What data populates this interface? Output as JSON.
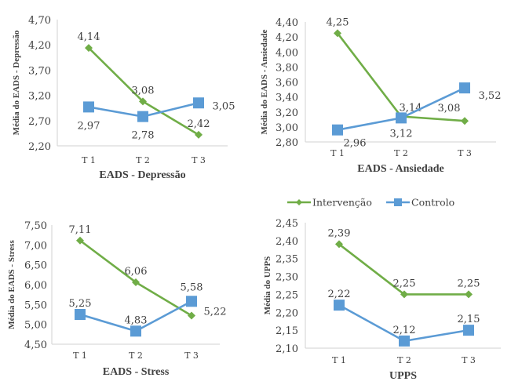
{
  "legend": {
    "items": [
      {
        "name": "Intervenção",
        "color": "#70AD47",
        "marker": "diamond"
      },
      {
        "name": "Controlo",
        "color": "#5B9BD5",
        "marker": "square"
      }
    ],
    "placement": "top-right"
  },
  "chart_data": [
    {
      "type": "line",
      "title": "",
      "xlabel": "EADS - Depressão",
      "ylabel": "Média do EADS - Depressão",
      "categories": [
        "T 1",
        "T 2",
        "T 3"
      ],
      "ylim": [
        2.2,
        4.7
      ],
      "yticks": [
        "4,70",
        "4,20",
        "3,70",
        "3,20",
        "2,70",
        "2,20"
      ],
      "ytick_values": [
        4.7,
        4.2,
        3.7,
        3.2,
        2.7,
        2.2
      ],
      "grid": false,
      "series": [
        {
          "name": "Intervenção",
          "values": [
            4.14,
            3.08,
            2.42
          ],
          "labels": [
            "4,14",
            "3,08",
            "2,42"
          ]
        },
        {
          "name": "Controlo",
          "values": [
            2.97,
            2.78,
            3.05
          ],
          "labels": [
            "2,97",
            "2,78",
            "3,05"
          ]
        }
      ]
    },
    {
      "type": "line",
      "title": "",
      "xlabel": "EADS - Ansiedade",
      "ylabel": "Média do EADS - Ansiedade",
      "categories": [
        "T 1",
        "T 2",
        "T 3"
      ],
      "ylim": [
        2.8,
        4.4
      ],
      "yticks": [
        "4,40",
        "4,20",
        "4,00",
        "3,80",
        "3,60",
        "3,40",
        "3,20",
        "3,00",
        "2,80"
      ],
      "ytick_values": [
        4.4,
        4.2,
        4.0,
        3.8,
        3.6,
        3.4,
        3.2,
        3.0,
        2.8
      ],
      "grid": false,
      "series": [
        {
          "name": "Intervenção",
          "values": [
            4.25,
            3.14,
            3.08
          ],
          "labels": [
            "4,25",
            "3,14",
            "3,08"
          ]
        },
        {
          "name": "Controlo",
          "values": [
            2.96,
            3.12,
            3.52
          ],
          "labels": [
            "2,96",
            "3,12",
            "3,52"
          ]
        }
      ]
    },
    {
      "type": "line",
      "title": "",
      "xlabel": "EADS - Stress",
      "ylabel": "Média do EADS - Stress",
      "categories": [
        "T 1",
        "T 2",
        "T 3"
      ],
      "ylim": [
        4.5,
        7.5
      ],
      "yticks": [
        "7,50",
        "7,00",
        "6,50",
        "6,00",
        "5,50",
        "5,00",
        "4,50"
      ],
      "ytick_values": [
        7.5,
        7.0,
        6.5,
        6.0,
        5.5,
        5.0,
        4.5
      ],
      "grid": false,
      "series": [
        {
          "name": "Intervenção",
          "values": [
            7.11,
            6.06,
            5.22
          ],
          "labels": [
            "7,11",
            "6,06",
            "5,22"
          ]
        },
        {
          "name": "Controlo",
          "values": [
            5.25,
            4.83,
            5.58
          ],
          "labels": [
            "5,25",
            "4,83",
            "5,58"
          ]
        }
      ]
    },
    {
      "type": "line",
      "title": "",
      "xlabel": "UPPS",
      "ylabel": "Média do UPPS",
      "categories": [
        "T 1",
        "T 2",
        "T 3"
      ],
      "ylim": [
        2.1,
        2.45
      ],
      "yticks": [
        "2,45",
        "2,40",
        "2,35",
        "2,30",
        "2,25",
        "2,20",
        "2,15",
        "2,10"
      ],
      "ytick_values": [
        2.45,
        2.4,
        2.35,
        2.3,
        2.25,
        2.2,
        2.15,
        2.1
      ],
      "grid": false,
      "series": [
        {
          "name": "Intervenção",
          "values": [
            2.39,
            2.25,
            2.25
          ],
          "labels": [
            "2,39",
            "2,25",
            "2,25"
          ]
        },
        {
          "name": "Controlo",
          "values": [
            2.22,
            2.12,
            2.15
          ],
          "labels": [
            "2,22",
            "2,12",
            "2,15"
          ]
        }
      ]
    }
  ]
}
